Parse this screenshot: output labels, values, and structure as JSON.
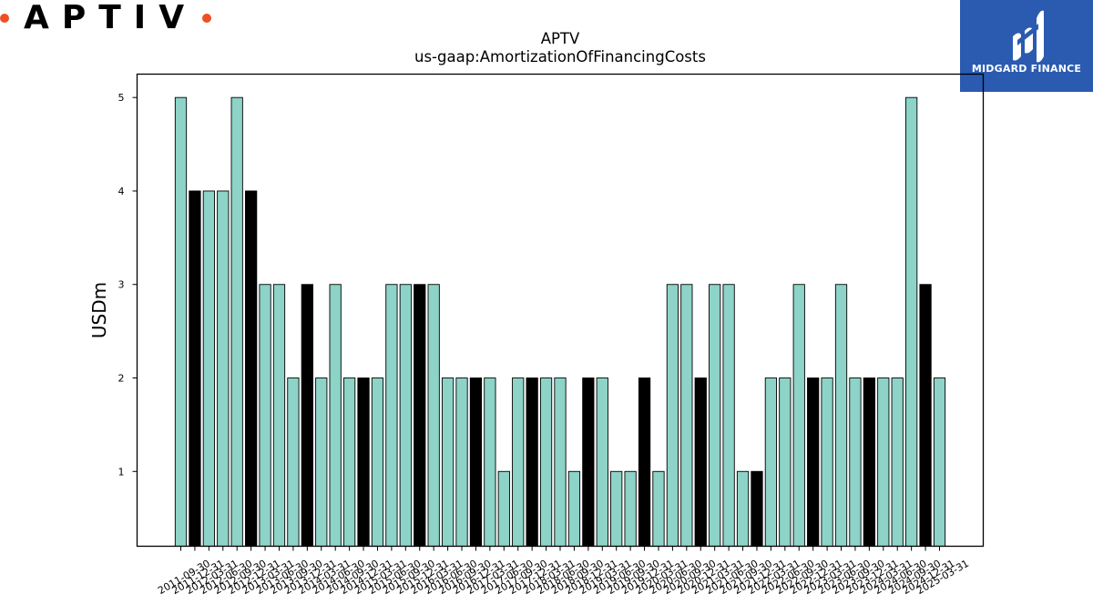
{
  "logo": {
    "text": "APTIV",
    "dot_color": "#f04e23"
  },
  "brand": {
    "name": "MIDGARD FINANCE",
    "bg_color": "#2b5bb0"
  },
  "chart_data": {
    "type": "bar",
    "title": "APTV",
    "subtitle": "us-gaap:AmortizationOfFinancingCosts",
    "xlabel": "",
    "ylabel": "USDm",
    "ylim": [
      0.2,
      5.25
    ],
    "yticks": [
      1,
      2,
      3,
      4,
      5
    ],
    "grid": false,
    "colors": {
      "teal": "#8dd3c7",
      "black": "#000000"
    },
    "categories": [
      "2011-09-30",
      "2011-12-31",
      "2012-03-31",
      "2012-06-30",
      "2012-09-30",
      "2012-12-31",
      "2013-03-31",
      "2013-06-30",
      "2013-09-30",
      "2013-12-31",
      "2014-03-31",
      "2014-06-30",
      "2014-09-30",
      "2014-12-31",
      "2015-03-31",
      "2015-06-30",
      "2015-09-30",
      "2015-12-31",
      "2016-03-31",
      "2016-06-30",
      "2016-09-30",
      "2016-12-31",
      "2017-03-31",
      "2017-06-30",
      "2017-09-30",
      "2017-12-31",
      "2018-03-31",
      "2018-06-30",
      "2018-09-30",
      "2018-12-31",
      "2019-03-31",
      "2019-06-30",
      "2019-09-30",
      "2019-12-31",
      "2020-03-31",
      "2020-06-30",
      "2020-09-30",
      "2020-12-31",
      "2021-03-31",
      "2021-06-30",
      "2021-09-30",
      "2021-12-31",
      "2022-03-31",
      "2022-06-30",
      "2022-09-30",
      "2022-12-31",
      "2023-03-31",
      "2023-06-30",
      "2023-09-30",
      "2023-12-31",
      "2024-03-31",
      "2024-06-30",
      "2024-09-30",
      "2024-12-31",
      "2025-03-31"
    ],
    "values": [
      5,
      4,
      4,
      4,
      5,
      4,
      3,
      3,
      2,
      3,
      2,
      3,
      2,
      2,
      2,
      3,
      3,
      3,
      3,
      2,
      2,
      2,
      2,
      1,
      2,
      2,
      2,
      2,
      1,
      2,
      2,
      1,
      1,
      2,
      1,
      3,
      3,
      2,
      3,
      3,
      1,
      1,
      2,
      2,
      3,
      2,
      2,
      3,
      2,
      2,
      2,
      2,
      5,
      3,
      2
    ],
    "bar_colors": [
      "teal",
      "black",
      "teal",
      "teal",
      "teal",
      "black",
      "teal",
      "teal",
      "teal",
      "black",
      "teal",
      "teal",
      "teal",
      "black",
      "teal",
      "teal",
      "teal",
      "black",
      "teal",
      "teal",
      "teal",
      "black",
      "teal",
      "teal",
      "teal",
      "black",
      "teal",
      "teal",
      "teal",
      "black",
      "teal",
      "teal",
      "teal",
      "black",
      "teal",
      "teal",
      "teal",
      "black",
      "teal",
      "teal",
      "teal",
      "black",
      "teal",
      "teal",
      "teal",
      "black",
      "teal",
      "teal",
      "teal",
      "black",
      "teal",
      "teal",
      "teal",
      "black",
      "teal"
    ]
  }
}
